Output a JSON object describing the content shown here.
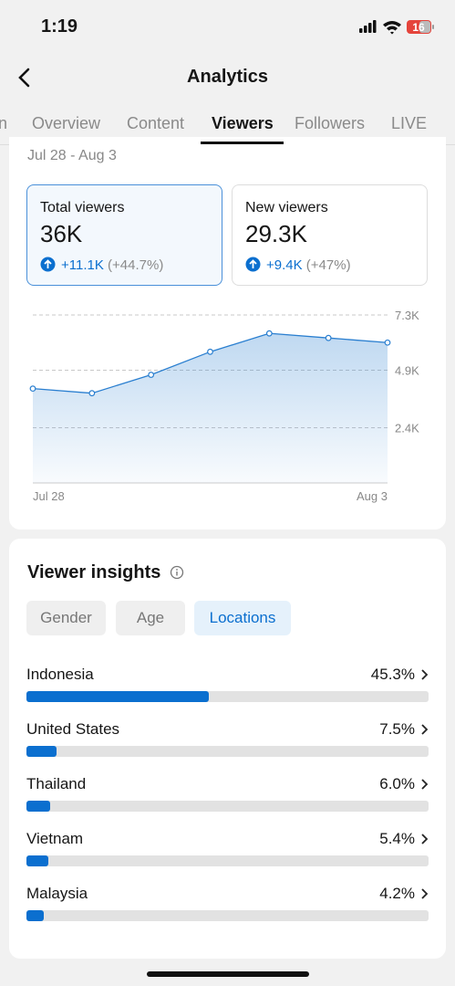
{
  "status": {
    "time": "1:19",
    "battery": "16"
  },
  "header": {
    "title": "Analytics"
  },
  "tabs": {
    "items": [
      "n",
      "Overview",
      "Content",
      "Viewers",
      "Followers",
      "LIVE"
    ],
    "active": "Viewers"
  },
  "date_range": "Jul 28 - Aug 3",
  "metrics": [
    {
      "label": "Total viewers",
      "value": "36K",
      "change": "+11.1K",
      "change_pct": "(+44.7%)",
      "selected": true
    },
    {
      "label": "New viewers",
      "value": "29.3K",
      "change": "+9.4K",
      "change_pct": "(+47%)",
      "selected": false
    }
  ],
  "chart_data": {
    "type": "line",
    "categories": [
      "Jul 28",
      null,
      null,
      null,
      null,
      null,
      "Aug 3"
    ],
    "values": [
      4100,
      3900,
      4700,
      5700,
      6500,
      6300,
      6100
    ],
    "color": "#2a7fd0",
    "ylim": [
      0,
      7300
    ],
    "yticks": [
      {
        "value": 2400,
        "label": "2.4K"
      },
      {
        "value": 4900,
        "label": "4.9K"
      },
      {
        "value": 7300,
        "label": "7.3K"
      }
    ],
    "grid": true
  },
  "insights": {
    "title": "Viewer insights",
    "filters": [
      "Gender",
      "Age",
      "Locations"
    ],
    "active": "Locations",
    "locations": {
      "categories": [
        "Indonesia",
        "United States",
        "Thailand",
        "Vietnam",
        "Malaysia"
      ],
      "values": [
        45.3,
        7.5,
        6.0,
        5.4,
        4.2
      ],
      "value_labels": [
        "45.3%",
        "7.5%",
        "6.0%",
        "5.4%",
        "4.2%"
      ],
      "xlim": [
        0,
        100
      ],
      "color": "#0b6fcf"
    }
  }
}
